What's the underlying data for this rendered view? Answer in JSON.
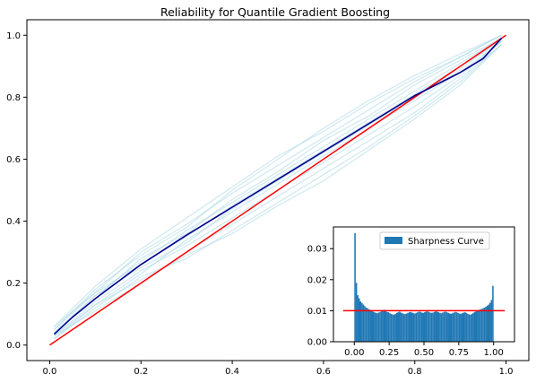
{
  "chart_data": [
    {
      "type": "line",
      "title": "Reliability for Quantile Gradient Boosting",
      "xlabel": "",
      "ylabel": "",
      "xlim": [
        -0.05,
        1.05
      ],
      "ylim": [
        -0.05,
        1.05
      ],
      "xticks": [
        "0.0",
        "0.2",
        "0.4",
        "0.6",
        "0.8",
        "1.0"
      ],
      "yticks": [
        "0.0",
        "0.2",
        "0.4",
        "0.6",
        "0.8",
        "1.0"
      ],
      "grid": false,
      "series": [
        {
          "role": "mean-reliability",
          "color": "#00008b",
          "x": [
            0.01,
            0.05,
            0.1,
            0.2,
            0.3,
            0.4,
            0.5,
            0.6,
            0.7,
            0.8,
            0.9,
            0.95,
            0.99
          ],
          "y": [
            0.035,
            0.09,
            0.15,
            0.26,
            0.355,
            0.445,
            0.535,
            0.625,
            0.715,
            0.805,
            0.88,
            0.925,
            0.99
          ]
        },
        {
          "role": "ideal-diagonal",
          "color": "#ff0000",
          "x": [
            0.0,
            1.0
          ],
          "y": [
            0.0,
            1.0
          ]
        },
        {
          "role": "bootstrap-curves",
          "color": "#add8e6",
          "curves": [
            [
              0.01,
              0.04,
              0.1,
              0.16,
              0.2,
              0.27,
              0.3,
              0.37,
              0.4,
              0.46,
              0.5,
              0.55,
              0.6,
              0.64,
              0.7,
              0.73,
              0.8,
              0.82,
              0.9,
              0.91,
              0.99,
              0.99
            ],
            [
              0.01,
              0.02,
              0.1,
              0.13,
              0.2,
              0.23,
              0.3,
              0.34,
              0.4,
              0.43,
              0.5,
              0.52,
              0.6,
              0.61,
              0.7,
              0.7,
              0.8,
              0.79,
              0.9,
              0.88,
              0.99,
              0.98
            ],
            [
              0.01,
              0.06,
              0.1,
              0.17,
              0.2,
              0.3,
              0.3,
              0.39,
              0.4,
              0.49,
              0.5,
              0.58,
              0.6,
              0.67,
              0.7,
              0.76,
              0.8,
              0.85,
              0.9,
              0.93,
              0.99,
              1.0
            ],
            [
              0.01,
              0.03,
              0.1,
              0.11,
              0.2,
              0.2,
              0.3,
              0.3,
              0.4,
              0.39,
              0.5,
              0.48,
              0.6,
              0.57,
              0.7,
              0.66,
              0.8,
              0.75,
              0.9,
              0.86,
              0.99,
              0.97
            ],
            [
              0.01,
              0.05,
              0.1,
              0.18,
              0.2,
              0.29,
              0.3,
              0.38,
              0.4,
              0.5,
              0.5,
              0.6,
              0.6,
              0.7,
              0.7,
              0.79,
              0.8,
              0.87,
              0.9,
              0.94,
              0.99,
              1.0
            ],
            [
              0.01,
              0.03,
              0.1,
              0.14,
              0.2,
              0.24,
              0.3,
              0.32,
              0.4,
              0.41,
              0.5,
              0.5,
              0.6,
              0.59,
              0.7,
              0.68,
              0.8,
              0.77,
              0.9,
              0.87,
              0.99,
              0.98
            ],
            [
              0.01,
              0.04,
              0.1,
              0.15,
              0.2,
              0.28,
              0.3,
              0.36,
              0.4,
              0.47,
              0.5,
              0.56,
              0.6,
              0.66,
              0.7,
              0.74,
              0.8,
              0.84,
              0.9,
              0.92,
              0.99,
              0.99
            ],
            [
              0.01,
              0.02,
              0.1,
              0.12,
              0.2,
              0.22,
              0.3,
              0.28,
              0.4,
              0.37,
              0.5,
              0.46,
              0.6,
              0.55,
              0.7,
              0.64,
              0.8,
              0.74,
              0.9,
              0.85,
              0.99,
              0.97
            ],
            [
              0.01,
              0.05,
              0.1,
              0.17,
              0.2,
              0.26,
              0.3,
              0.35,
              0.4,
              0.45,
              0.5,
              0.54,
              0.6,
              0.63,
              0.7,
              0.72,
              0.8,
              0.81,
              0.9,
              0.9,
              0.99,
              0.98
            ],
            [
              0.01,
              0.04,
              0.1,
              0.16,
              0.2,
              0.25,
              0.3,
              0.33,
              0.4,
              0.44,
              0.5,
              0.53,
              0.6,
              0.62,
              0.7,
              0.71,
              0.8,
              0.8,
              0.9,
              0.89,
              0.99,
              0.99
            ],
            [
              0.01,
              0.03,
              0.1,
              0.13,
              0.2,
              0.21,
              0.3,
              0.29,
              0.4,
              0.36,
              0.5,
              0.45,
              0.6,
              0.53,
              0.7,
              0.63,
              0.8,
              0.73,
              0.9,
              0.84,
              0.99,
              0.97
            ],
            [
              0.01,
              0.06,
              0.1,
              0.19,
              0.2,
              0.31,
              0.3,
              0.41,
              0.4,
              0.51,
              0.5,
              0.61,
              0.6,
              0.69,
              0.7,
              0.78,
              0.8,
              0.86,
              0.9,
              0.93,
              0.99,
              1.0
            ]
          ]
        }
      ]
    },
    {
      "type": "bar",
      "legend": "Sharpness Curve",
      "legend_position": "top-right",
      "xlim": [
        -0.15,
        1.15
      ],
      "ylim": [
        0.0,
        0.037
      ],
      "xticks": [
        "0.00",
        "0.25",
        "0.50",
        "0.75",
        "1.00"
      ],
      "yticks": [
        "0.00",
        "0.01",
        "0.02",
        "0.03"
      ],
      "bar_color": "#1f77b4",
      "reference_line": {
        "y": 0.01,
        "color": "#ff0000"
      },
      "bins": 100,
      "values": [
        0.035,
        0.019,
        0.015,
        0.014,
        0.013,
        0.0125,
        0.012,
        0.0115,
        0.011,
        0.0108,
        0.0105,
        0.0102,
        0.01,
        0.0097,
        0.0095,
        0.0093,
        0.0092,
        0.0094,
        0.0096,
        0.0098,
        0.0101,
        0.0103,
        0.0099,
        0.0096,
        0.0095,
        0.0092,
        0.009,
        0.0088,
        0.0087,
        0.009,
        0.0093,
        0.0095,
        0.0097,
        0.0094,
        0.0092,
        0.009,
        0.0089,
        0.0091,
        0.0093,
        0.0095,
        0.0096,
        0.0094,
        0.0092,
        0.0091,
        0.0093,
        0.0095,
        0.0097,
        0.0096,
        0.0094,
        0.0093,
        0.0095,
        0.0097,
        0.0098,
        0.0096,
        0.0094,
        0.0093,
        0.0094,
        0.0096,
        0.0098,
        0.0097,
        0.0095,
        0.0093,
        0.0092,
        0.0094,
        0.0096,
        0.0097,
        0.0095,
        0.0093,
        0.0091,
        0.009,
        0.0092,
        0.0094,
        0.0096,
        0.0095,
        0.0093,
        0.0091,
        0.009,
        0.0092,
        0.0094,
        0.0095,
        0.0093,
        0.009,
        0.0088,
        0.0087,
        0.009,
        0.0093,
        0.0096,
        0.0098,
        0.01,
        0.0102,
        0.0104,
        0.0106,
        0.0108,
        0.011,
        0.0113,
        0.0116,
        0.012,
        0.0126,
        0.0135,
        0.018
      ]
    }
  ]
}
